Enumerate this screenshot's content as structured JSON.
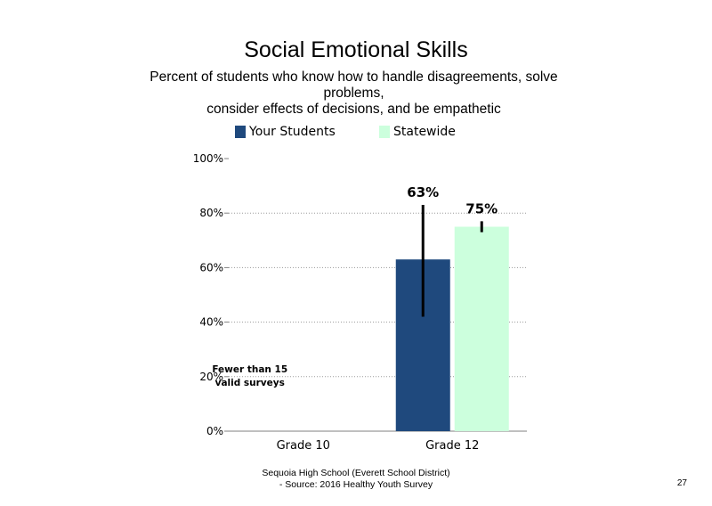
{
  "chart_data": {
    "type": "bar",
    "title": "Social Emotional Skills",
    "subtitle_lines": [
      "Percent of students who know how to handle disagreements, solve",
      "problems,",
      "consider effects of decisions, and be empathetic"
    ],
    "categories": [
      "Grade 10",
      "Grade 12"
    ],
    "series": [
      {
        "name": "Your Students",
        "color": "#1F497D",
        "values": [
          null,
          63
        ],
        "error_low": [
          null,
          42
        ],
        "error_high": [
          null,
          83
        ]
      },
      {
        "name": "Statewide",
        "color": "#CCFFDD",
        "values": [
          null,
          75
        ],
        "error_low": [
          null,
          73
        ],
        "error_high": [
          null,
          77
        ]
      }
    ],
    "data_labels": [
      {
        "series": 0,
        "category": 1,
        "text": "63%"
      },
      {
        "series": 1,
        "category": 1,
        "text": "75%"
      }
    ],
    "yticks": [
      0,
      20,
      40,
      60,
      80,
      100
    ],
    "ytick_labels": [
      "0%",
      "20%",
      "40%",
      "60%",
      "80%",
      "100%"
    ],
    "ylim": [
      0,
      100
    ],
    "grid": true,
    "legend_position": "top",
    "annotation": {
      "category": 0,
      "lines": [
        "Fewer than 15",
        "valid surveys"
      ]
    }
  },
  "footer": {
    "line1": "Sequoia High School (Everett School District)",
    "line2": "- Source: 2016 Healthy Youth Survey"
  },
  "page_number": "27"
}
